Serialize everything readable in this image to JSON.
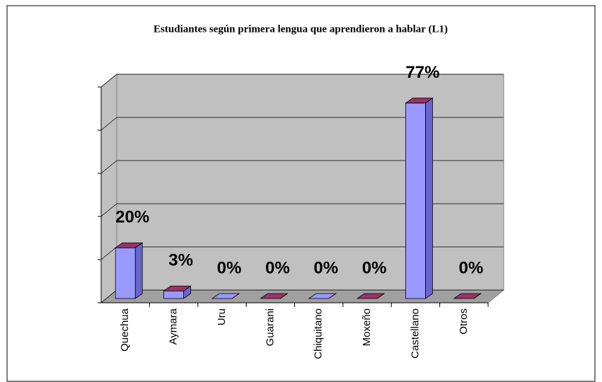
{
  "chart_data": {
    "type": "bar3d",
    "title": "Estudiantes según primera lengua que aprendieron a hablar (L1)",
    "categories": [
      "Quechua",
      "Aymara",
      "Uru",
      "Guarani",
      "Chiquitano",
      "Moxeño",
      "Castellano",
      "Otros"
    ],
    "values": [
      20,
      3,
      0,
      0,
      0,
      0,
      77,
      0
    ],
    "value_labels": [
      "20%",
      "3%",
      "0%",
      "0%",
      "0%",
      "0%",
      "77%",
      "0%"
    ],
    "color": "#9999ff",
    "top_color": "#993366",
    "ylim": [
      0,
      85
    ],
    "yticks": [
      0,
      17,
      34,
      51,
      68,
      85
    ],
    "grid": true
  }
}
